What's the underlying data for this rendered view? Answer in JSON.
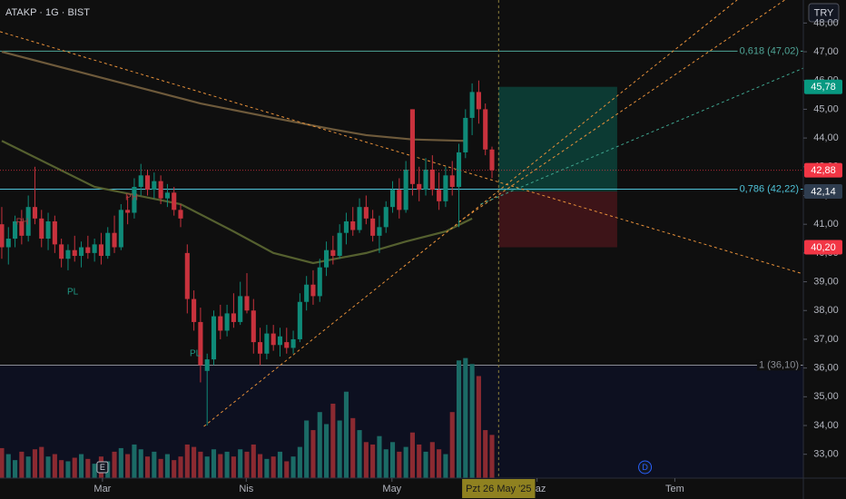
{
  "header": {
    "title": "ATAKP · 1G · BIST",
    "currency": "TRY"
  },
  "chart_data": {
    "type": "candlestick",
    "x": [
      0,
      1,
      2,
      3,
      4,
      5,
      6,
      7,
      8,
      9,
      10,
      11,
      12,
      13,
      14,
      15,
      16,
      17,
      18,
      19,
      20,
      21,
      22,
      23,
      24,
      25,
      26,
      27,
      28,
      29,
      30,
      31,
      32,
      33,
      34,
      35,
      36,
      37,
      38,
      39,
      40,
      41,
      42,
      43,
      44,
      45,
      46,
      47,
      48,
      49,
      50,
      51,
      52,
      53,
      54,
      55,
      56,
      57,
      58,
      59,
      60,
      61,
      62,
      63,
      64,
      65,
      66,
      67,
      68,
      69,
      70,
      71,
      72,
      73,
      74
    ],
    "open": [
      41.0,
      40.2,
      40.5,
      41.1,
      40.6,
      41.6,
      41.2,
      40.5,
      41.1,
      40.3,
      39.8,
      40.1,
      39.9,
      40.2,
      40.0,
      40.3,
      39.9,
      40.7,
      40.2,
      41.5,
      41.4,
      42.3,
      42.7,
      42.2,
      42.5,
      41.9,
      42.1,
      41.5,
      40.0,
      38.4,
      37.6,
      35.9,
      36.3,
      37.8,
      37.3,
      37.9,
      37.6,
      38.5,
      38.0,
      36.9,
      36.5,
      37.2,
      36.8,
      36.9,
      36.7,
      37.0,
      38.3,
      38.9,
      38.5,
      39.5,
      40.1,
      39.9,
      40.7,
      41.1,
      40.8,
      41.6,
      41.2,
      40.6,
      40.9,
      41.6,
      42.2,
      41.5,
      45.0,
      42.4,
      42.2,
      42.9,
      42.2,
      41.8,
      42.7,
      42.3,
      43.5,
      44.7,
      45.6,
      45.0,
      43.6
    ],
    "high": [
      41.6,
      40.9,
      41.3,
      41.5,
      42.0,
      43.0,
      41.5,
      41.4,
      41.3,
      40.5,
      40.3,
      40.6,
      40.4,
      40.6,
      40.5,
      40.7,
      40.9,
      41.3,
      41.7,
      42.0,
      42.6,
      43.1,
      42.9,
      42.8,
      42.7,
      42.4,
      42.3,
      41.7,
      40.3,
      38.7,
      38.1,
      36.5,
      38.0,
      38.2,
      38.2,
      38.6,
      39.0,
      39.3,
      38.4,
      37.4,
      37.5,
      37.5,
      37.4,
      37.4,
      37.3,
      38.6,
      39.2,
      39.4,
      39.8,
      40.4,
      40.6,
      41.0,
      41.4,
      41.6,
      41.9,
      42.0,
      41.5,
      41.3,
      41.8,
      42.5,
      42.6,
      43.2,
      45.0,
      43.0,
      43.3,
      43.4,
      42.8,
      43.0,
      43.2,
      43.8,
      45.0,
      45.9,
      46.0,
      45.2,
      43.7
    ],
    "low": [
      39.8,
      39.6,
      40.2,
      40.3,
      40.4,
      41.0,
      40.2,
      40.1,
      40.0,
      39.5,
      39.4,
      39.7,
      39.5,
      39.8,
      39.7,
      39.6,
      39.8,
      40.0,
      40.1,
      41.0,
      41.2,
      42.0,
      42.0,
      41.9,
      41.7,
      41.6,
      41.3,
      40.9,
      37.9,
      37.3,
      35.5,
      34.0,
      36.1,
      37.0,
      37.1,
      37.4,
      37.5,
      37.9,
      36.5,
      36.1,
      36.3,
      36.6,
      36.4,
      36.5,
      36.5,
      36.9,
      38.0,
      38.2,
      38.3,
      39.2,
      39.6,
      39.8,
      40.3,
      40.6,
      40.7,
      41.0,
      40.4,
      40.0,
      40.7,
      41.4,
      41.2,
      41.4,
      42.0,
      41.8,
      42.0,
      42.0,
      41.5,
      41.6,
      42.0,
      40.9,
      43.3,
      44.1,
      44.5,
      43.4,
      42.6
    ],
    "close": [
      40.2,
      40.5,
      41.1,
      40.6,
      41.6,
      41.2,
      40.5,
      41.1,
      40.3,
      39.8,
      40.1,
      39.9,
      40.2,
      40.0,
      40.3,
      39.9,
      40.7,
      40.2,
      41.5,
      41.4,
      42.3,
      42.7,
      42.2,
      42.5,
      41.9,
      42.1,
      41.5,
      41.2,
      38.4,
      37.6,
      36.1,
      36.3,
      37.8,
      37.3,
      37.9,
      37.6,
      38.5,
      38.0,
      36.9,
      36.5,
      37.2,
      36.8,
      37.1,
      36.7,
      37.0,
      38.3,
      38.9,
      38.5,
      39.5,
      40.1,
      39.9,
      40.7,
      41.1,
      40.8,
      41.6,
      41.2,
      40.6,
      40.9,
      41.6,
      42.2,
      41.5,
      42.9,
      42.4,
      42.2,
      42.9,
      42.2,
      41.8,
      42.7,
      42.3,
      43.5,
      44.7,
      45.6,
      45.0,
      43.6,
      42.88
    ],
    "volume": [
      25,
      20,
      15,
      22,
      18,
      24,
      26,
      18,
      20,
      15,
      14,
      17,
      20,
      16,
      12,
      18,
      14,
      22,
      25,
      20,
      28,
      24,
      18,
      22,
      16,
      20,
      15,
      18,
      28,
      26,
      22,
      18,
      24,
      20,
      22,
      18,
      24,
      22,
      28,
      20,
      16,
      18,
      22,
      14,
      18,
      26,
      48,
      40,
      55,
      45,
      62,
      48,
      72,
      50,
      40,
      30,
      28,
      35,
      24,
      30,
      22,
      26,
      38,
      28,
      22,
      30,
      24,
      20,
      55,
      98,
      100,
      95,
      85,
      40,
      36
    ],
    "up_color": "#0f8a78",
    "down_color": "#c8323d",
    "volume_up_color": "#1b6b66",
    "volume_down_color": "#8b2a31",
    "xlim": [
      -0.27,
      121
    ],
    "xticks": [
      {
        "value": 15.2,
        "label": "Mar"
      },
      {
        "value": 36.9,
        "label": "Nis"
      },
      {
        "value": 58.9,
        "label": "May"
      },
      {
        "value": 80.8,
        "label": "Haz"
      },
      {
        "value": 101.6,
        "label": "Tem"
      }
    ],
    "ylim": [
      32.17,
      48.8
    ],
    "yticks": [
      {
        "value": 33,
        "label": "33,00"
      },
      {
        "value": 34,
        "label": "34,00"
      },
      {
        "value": 35,
        "label": "35,00"
      },
      {
        "value": 36,
        "label": "36,00"
      },
      {
        "value": 37,
        "label": "37,00"
      },
      {
        "value": 38,
        "label": "38,00"
      },
      {
        "value": 39,
        "label": "39,00"
      },
      {
        "value": 40,
        "label": "40,00"
      },
      {
        "value": 41,
        "label": "41,00"
      },
      {
        "value": 42,
        "label": "42,00"
      },
      {
        "value": 43,
        "label": "43,00"
      },
      {
        "value": 44,
        "label": "44,00"
      },
      {
        "value": 45,
        "label": "45,00"
      },
      {
        "value": 46,
        "label": "46,00"
      },
      {
        "value": 47,
        "label": "47,00"
      },
      {
        "value": 48,
        "label": "48,00"
      }
    ],
    "volume_lim": [
      0,
      102
    ],
    "moving_averages": [
      {
        "color": "#6e5a3b",
        "x": [
          0,
          10,
          20,
          30,
          41,
          50,
          55,
          62,
          70
        ],
        "values": [
          47.0,
          46.4,
          45.8,
          45.2,
          44.7,
          44.3,
          44.1,
          43.95,
          43.9
        ]
      },
      {
        "color": "#55602f",
        "x": [
          0,
          14,
          27,
          35,
          41,
          47,
          55,
          61,
          67,
          71
        ],
        "values": [
          43.9,
          42.3,
          41.7,
          40.75,
          40.0,
          39.65,
          40.0,
          40.4,
          40.75,
          41.2
        ]
      }
    ],
    "trendlines": [
      {
        "color": "#e8913a",
        "x": [
          -0.27,
          121
        ],
        "values": [
          47.7,
          39.27
        ]
      },
      {
        "color": "#e8913a",
        "x": [
          30.5,
          111
        ],
        "values": [
          33.97,
          48.8
        ]
      },
      {
        "color": "#e8913a",
        "x": [
          68.9,
          118.2
        ],
        "values": [
          41.07,
          48.8
        ]
      },
      {
        "color": "#3fa58f",
        "x": [
          72.3,
          121
        ],
        "values": [
          41.7,
          46.43
        ]
      }
    ],
    "levels": [
      {
        "value": 47.02,
        "label": "0,618 (47,02)",
        "color": "#4fa597"
      },
      {
        "value": 42.22,
        "label": "0,786 (42,22)",
        "color": "#4fc3d9"
      },
      {
        "value": 36.1,
        "label": "1 (36,10)",
        "color": "#8a8d94"
      }
    ],
    "last_price": {
      "value": 42.88,
      "label": "42,88",
      "color": "#f23645"
    },
    "position": {
      "x": [
        75,
        92.9
      ],
      "target": {
        "value": 45.78,
        "label": "45,78"
      },
      "entry": {
        "value": 42.14,
        "label": "42,14"
      },
      "stop": {
        "value": 40.2,
        "label": "40,20"
      },
      "profit_color": "#0c3a33",
      "loss_color": "#3d1418",
      "target_color": "#089981",
      "entry_color": "#2f3d4f",
      "stop_color": "#f23645"
    },
    "pivots": [
      {
        "label": "PH",
        "x": 3.1,
        "value": 41.07
      },
      {
        "label": "PL",
        "x": 10.7,
        "value": 38.64
      },
      {
        "label": "PH",
        "x": 19.6,
        "value": 41.92
      },
      {
        "label": "PL",
        "x": 29.2,
        "value": 36.5
      }
    ],
    "events": [
      {
        "label": "E",
        "x": 15.2
      },
      {
        "label": "D",
        "x": 97.1
      }
    ],
    "crosshair": {
      "x": 75,
      "label": "Pzt 26 May '25"
    }
  }
}
